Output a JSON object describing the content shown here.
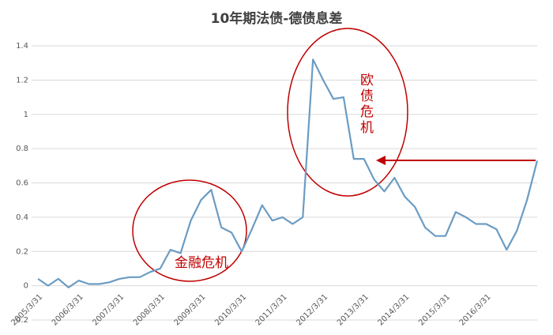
{
  "chart_data": {
    "type": "line",
    "title": "10年期法债-德债息差",
    "categories": [
      "2005/3/31",
      null,
      null,
      null,
      "2006/3/31",
      null,
      null,
      null,
      "2007/3/31",
      null,
      null,
      null,
      "2008/3/31",
      null,
      null,
      null,
      "2009/3/31",
      null,
      null,
      null,
      "2010/3/31",
      null,
      null,
      null,
      "2011/3/31",
      null,
      null,
      null,
      "2012/3/31",
      null,
      null,
      null,
      "2013/3/31",
      null,
      null,
      null,
      "2014/3/31",
      null,
      null,
      null,
      "2015/3/31",
      null,
      null,
      null,
      "2016/3/31",
      null,
      null,
      null,
      null,
      null
    ],
    "values": [
      0.04,
      0.0,
      0.04,
      -0.01,
      0.03,
      0.01,
      0.01,
      0.02,
      0.04,
      0.05,
      0.05,
      0.08,
      0.1,
      0.21,
      0.19,
      0.38,
      0.5,
      0.56,
      0.34,
      0.31,
      0.2,
      0.33,
      0.47,
      0.38,
      0.4,
      0.36,
      0.4,
      1.32,
      1.2,
      1.09,
      1.1,
      0.74,
      0.74,
      0.62,
      0.55,
      0.63,
      0.52,
      0.46,
      0.34,
      0.29,
      0.29,
      0.43,
      0.4,
      0.36,
      0.36,
      0.33,
      0.21,
      0.32,
      0.5,
      0.73
    ],
    "color": "#6b9cc3",
    "ylim": [
      -0.2,
      1.4
    ],
    "yticks": [
      -0.2,
      0,
      0.2,
      0.4,
      0.6,
      0.8,
      1,
      1.2,
      1.4
    ],
    "grid": true,
    "annotations": [
      "金融危机",
      "欧债危机"
    ]
  }
}
